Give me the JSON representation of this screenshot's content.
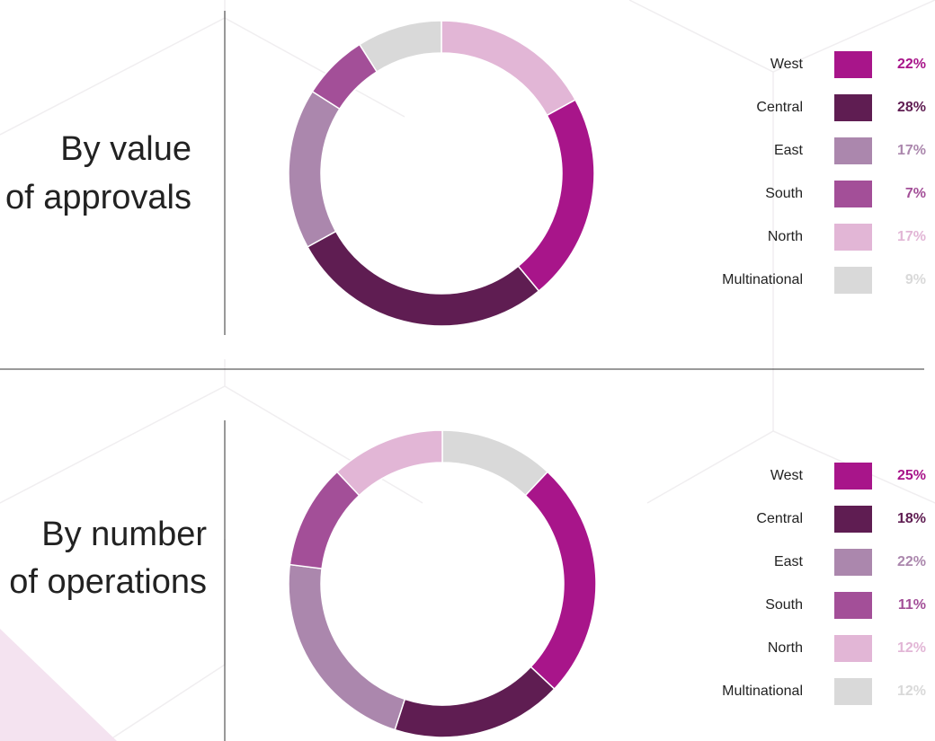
{
  "chart_data": [
    {
      "type": "pie",
      "donut": true,
      "title": [
        "By value",
        "of approvals"
      ],
      "categories": [
        "West",
        "Central",
        "East",
        "South",
        "North",
        "Multinational"
      ],
      "values": [
        22,
        28,
        17,
        7,
        17,
        9
      ],
      "value_labels": [
        "22%",
        "28%",
        "17%",
        "7%",
        "17%",
        "9%"
      ],
      "colors": [
        "#a8158a",
        "#5f1d52",
        "#ab87ad",
        "#a34f98",
        "#e2b6d6",
        "#d9d9d9"
      ]
    },
    {
      "type": "pie",
      "donut": true,
      "title": [
        "By number",
        "of operations"
      ],
      "categories": [
        "West",
        "Central",
        "East",
        "South",
        "North",
        "Multinational"
      ],
      "values": [
        25,
        18,
        22,
        11,
        12,
        12
      ],
      "value_labels": [
        "25%",
        "18%",
        "22%",
        "11%",
        "12%",
        "12%"
      ],
      "colors": [
        "#a8158a",
        "#5f1d52",
        "#ab87ad",
        "#a34f98",
        "#e2b6d6",
        "#d9d9d9"
      ]
    }
  ]
}
